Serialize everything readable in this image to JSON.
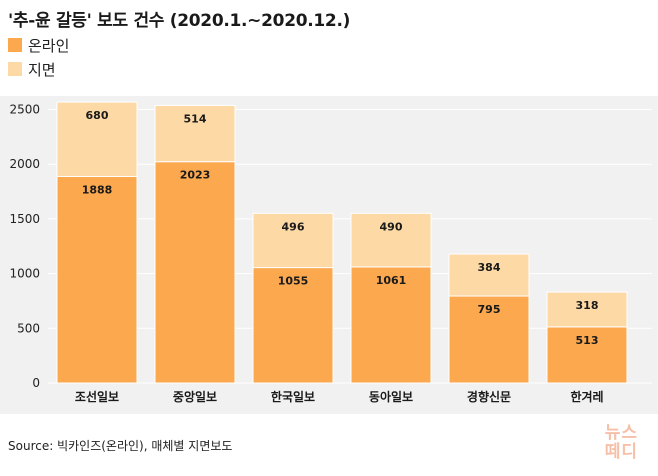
{
  "colors": {
    "online": "#fba84f",
    "print": "#fdd9a6",
    "plot_background": "#f1f1f1",
    "gridline": "#ffffff",
    "logo": "#f6c0a8"
  },
  "logo": {
    "line1": "뉴스",
    "line2": "떼디"
  },
  "source": "Source: 빅카인즈(온라인), 매체별 지면보도",
  "chart_data": {
    "type": "bar",
    "stacked": true,
    "title": "'추-윤 갈등' 보도 건수 (2020.1.~2020.12.)",
    "categories": [
      "조선일보",
      "중앙일보",
      "한국일보",
      "동아일보",
      "경향신문",
      "한겨레"
    ],
    "series": [
      {
        "name": "온라인",
        "color": "#fba84f",
        "values": [
          1888,
          2023,
          1055,
          1061,
          795,
          513
        ]
      },
      {
        "name": "지면",
        "color": "#fdd9a6",
        "values": [
          680,
          514,
          496,
          490,
          384,
          318
        ]
      }
    ],
    "yticks": [
      0,
      500,
      1000,
      1500,
      2000,
      2500
    ],
    "ylim": [
      0,
      2600
    ],
    "grid": true,
    "legend_position": "top-left",
    "xlabel": "",
    "ylabel": ""
  }
}
